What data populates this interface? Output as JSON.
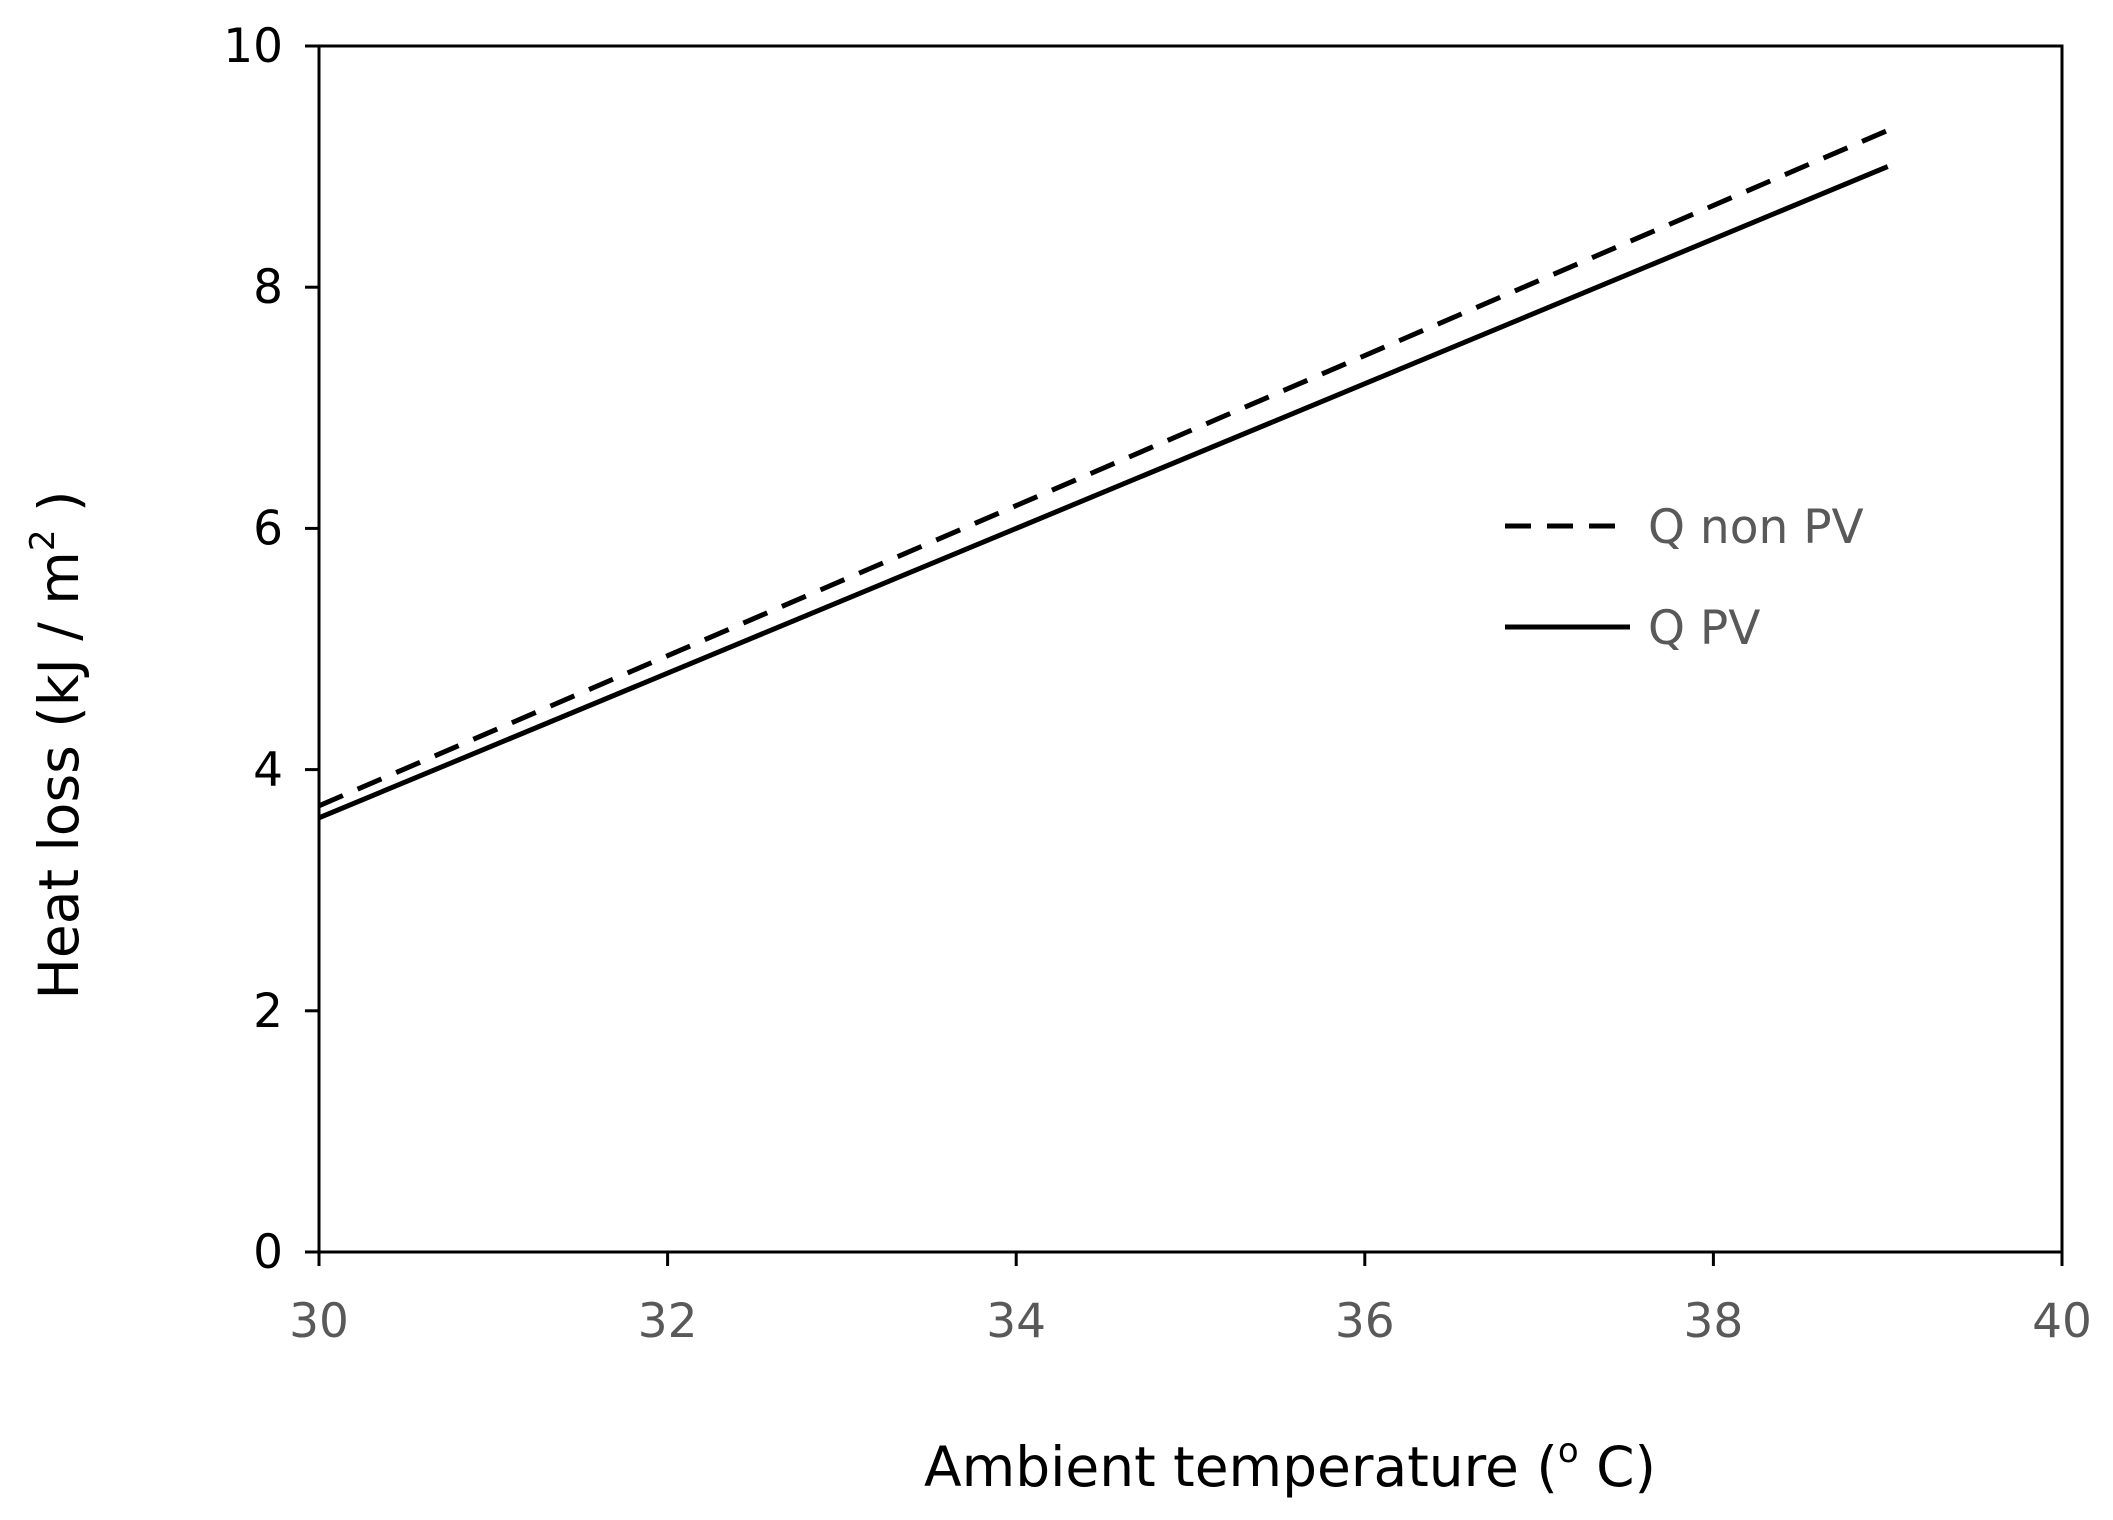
{
  "chart_data": {
    "type": "line",
    "title": "",
    "xlabel": {
      "main": "Ambient temperature (",
      "sup": "o",
      "tail": " C)"
    },
    "ylabel": {
      "main": "Heat loss  (kJ / m",
      "sup": "2",
      "tail": " )"
    },
    "xlim": [
      30,
      40
    ],
    "ylim": [
      0,
      10
    ],
    "xticks": [
      30,
      32,
      34,
      36,
      38,
      40
    ],
    "yticks": [
      0,
      2,
      4,
      6,
      8,
      10
    ],
    "grid": false,
    "legend_position": "right",
    "series": [
      {
        "name": "Q non PV",
        "style": "dashed",
        "color": "#000000",
        "x": [
          30,
          39
        ],
        "y": [
          3.7,
          9.3
        ]
      },
      {
        "name": "Q PV",
        "style": "solid",
        "color": "#000000",
        "x": [
          30,
          39
        ],
        "y": [
          3.6,
          9.0
        ]
      }
    ]
  }
}
